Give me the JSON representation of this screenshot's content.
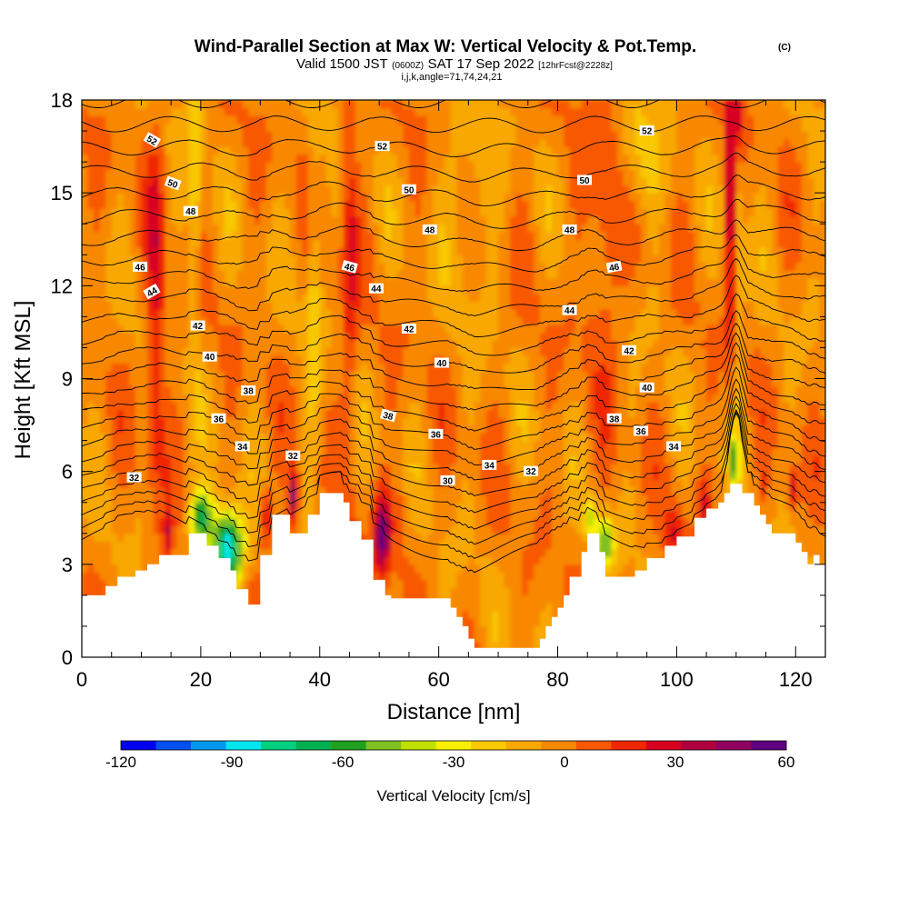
{
  "chart_data": {
    "type": "heatmap",
    "title": "Wind-Parallel Section at Max W: Vertical Velocity & Pot.Temp.",
    "copyright": "(C)",
    "subtitle_valid": "Valid 1500 JST",
    "subtitle_utc": "(0600Z)",
    "subtitle_date": "SAT 17 Sep 2022",
    "subtitle_fcst": "[12hrFcst@2228z]",
    "subtitle_grid": "i,j,k,angle=71,74,24,21",
    "xlabel": "Distance [nm]",
    "ylabel": "Height [Kft MSL]",
    "xlim": [
      0,
      125
    ],
    "ylim": [
      0,
      18
    ],
    "x_ticks": [
      0,
      20,
      40,
      60,
      80,
      100,
      120
    ],
    "x_tick_labels": [
      "0",
      "20",
      "40",
      "60",
      "80",
      "100",
      "120"
    ],
    "y_ticks": [
      0,
      3,
      6,
      9,
      12,
      15,
      18
    ],
    "y_tick_labels": [
      "0",
      "3",
      "6",
      "9",
      "12",
      "15",
      "18"
    ],
    "colorbar": {
      "label": "Vertical Velocity [cm/s]",
      "range": [
        -120,
        60
      ],
      "tick_values": [
        -120,
        -90,
        -60,
        -30,
        0,
        30,
        60
      ],
      "tick_labels": [
        "-120",
        "-90",
        "-60",
        "-30",
        "0",
        "30",
        "60"
      ],
      "colors": [
        "#0000f0",
        "#0050f0",
        "#0096f0",
        "#00e6f0",
        "#00d080",
        "#00b050",
        "#20a020",
        "#80c020",
        "#c0e000",
        "#f8f000",
        "#f8c800",
        "#f8a800",
        "#f88800",
        "#f85800",
        "#f02800",
        "#d80020",
        "#b00040",
        "#900060",
        "#600080"
      ]
    },
    "terrain": {
      "x": [
        0,
        4,
        4,
        6,
        6,
        9,
        9,
        11,
        11,
        13,
        13,
        18,
        18,
        21,
        21,
        23,
        23,
        25,
        25,
        26,
        26,
        28,
        28,
        30,
        30,
        32,
        32,
        35,
        35,
        38,
        38,
        40,
        40,
        44,
        44,
        45,
        45,
        47,
        47,
        49,
        49,
        51,
        51,
        52,
        52,
        55,
        55,
        58,
        58,
        62,
        62,
        63,
        63,
        64,
        64,
        65,
        65,
        66,
        66,
        74,
        74,
        77,
        77,
        78,
        78,
        79,
        79,
        80,
        80,
        81,
        81,
        82,
        82,
        84,
        84,
        85,
        85,
        87,
        87,
        88,
        88,
        91,
        91,
        93,
        93,
        95,
        95,
        98,
        98,
        100,
        100,
        103,
        103,
        105,
        105,
        107,
        107,
        108,
        108,
        109,
        109,
        111,
        111,
        113,
        113,
        114,
        114,
        115,
        115,
        116,
        116,
        120,
        120,
        121,
        121,
        122,
        122,
        123,
        123,
        124,
        124,
        125
      ],
      "y": [
        2.0,
        2.0,
        2.3,
        2.3,
        2.6,
        2.6,
        2.8,
        2.8,
        3.0,
        3.0,
        3.3,
        3.3,
        4.0,
        4.0,
        3.6,
        3.6,
        3.2,
        3.2,
        2.8,
        2.8,
        2.2,
        2.2,
        1.7,
        1.7,
        3.3,
        3.3,
        4.6,
        4.6,
        4.0,
        4.0,
        4.6,
        4.6,
        5.3,
        5.3,
        5.0,
        5.0,
        4.4,
        4.4,
        3.8,
        3.8,
        2.5,
        2.5,
        2.0,
        2.0,
        1.9,
        1.9,
        1.9,
        1.9,
        1.9,
        1.9,
        1.6,
        1.6,
        1.3,
        1.3,
        1.0,
        1.0,
        0.6,
        0.6,
        0.3,
        0.3,
        0.3,
        0.3,
        0.6,
        0.6,
        1.0,
        1.0,
        1.3,
        1.3,
        1.6,
        1.6,
        2.0,
        2.0,
        2.6,
        2.6,
        3.4,
        3.4,
        4.0,
        4.0,
        3.4,
        3.4,
        2.6,
        2.6,
        2.6,
        2.6,
        2.8,
        2.8,
        3.2,
        3.2,
        3.6,
        3.6,
        3.9,
        3.9,
        4.5,
        4.5,
        4.8,
        4.8,
        5.0,
        5.0,
        5.3,
        5.3,
        5.6,
        5.6,
        5.3,
        5.3,
        4.9,
        4.9,
        4.6,
        4.6,
        4.3,
        4.3,
        4.0,
        4.0,
        3.7,
        3.7,
        3.4,
        3.4,
        3.0,
        3.0,
        3.3,
        3.3,
        3.0,
        3.0
      ]
    },
    "theta_labels": [
      {
        "value": "52",
        "x": 11.8,
        "y": 16.7,
        "rot": 30
      },
      {
        "value": "50",
        "x": 15.3,
        "y": 15.3,
        "rot": 20
      },
      {
        "value": "48",
        "x": 18.3,
        "y": 14.4,
        "rot": 0
      },
      {
        "value": "46",
        "x": 9.8,
        "y": 12.6,
        "rot": 0
      },
      {
        "value": "44",
        "x": 11.8,
        "y": 11.8,
        "rot": -30
      },
      {
        "value": "42",
        "x": 19.5,
        "y": 10.7,
        "rot": 0
      },
      {
        "value": "40",
        "x": 21.5,
        "y": 9.7,
        "rot": 0
      },
      {
        "value": "38",
        "x": 28.0,
        "y": 8.6,
        "rot": 0
      },
      {
        "value": "36",
        "x": 23.0,
        "y": 7.7,
        "rot": 0
      },
      {
        "value": "34",
        "x": 27.0,
        "y": 6.8,
        "rot": 0
      },
      {
        "value": "32",
        "x": 35.5,
        "y": 6.5,
        "rot": 0
      },
      {
        "value": "32",
        "x": 8.8,
        "y": 5.8,
        "rot": 0
      },
      {
        "value": "52",
        "x": 50.5,
        "y": 16.5,
        "rot": 0
      },
      {
        "value": "50",
        "x": 55.0,
        "y": 15.1,
        "rot": 0
      },
      {
        "value": "48",
        "x": 58.5,
        "y": 13.8,
        "rot": 0
      },
      {
        "value": "46",
        "x": 45.0,
        "y": 12.6,
        "rot": 15
      },
      {
        "value": "44",
        "x": 49.5,
        "y": 11.9,
        "rot": 0
      },
      {
        "value": "42",
        "x": 55.0,
        "y": 10.6,
        "rot": 0
      },
      {
        "value": "40",
        "x": 60.5,
        "y": 9.5,
        "rot": 0
      },
      {
        "value": "38",
        "x": 51.5,
        "y": 7.8,
        "rot": 15
      },
      {
        "value": "36",
        "x": 59.5,
        "y": 7.2,
        "rot": 0
      },
      {
        "value": "34",
        "x": 68.5,
        "y": 6.2,
        "rot": 0
      },
      {
        "value": "32",
        "x": 75.5,
        "y": 6.0,
        "rot": 0
      },
      {
        "value": "30",
        "x": 61.5,
        "y": 5.7,
        "rot": 0
      },
      {
        "value": "52",
        "x": 95.0,
        "y": 17.0,
        "rot": 0
      },
      {
        "value": "50",
        "x": 84.5,
        "y": 15.4,
        "rot": 0
      },
      {
        "value": "48",
        "x": 82.0,
        "y": 13.8,
        "rot": 0
      },
      {
        "value": "46",
        "x": 89.5,
        "y": 12.6,
        "rot": -10
      },
      {
        "value": "44",
        "x": 82.0,
        "y": 11.2,
        "rot": 0
      },
      {
        "value": "42",
        "x": 92.0,
        "y": 9.9,
        "rot": 0
      },
      {
        "value": "40",
        "x": 95.0,
        "y": 8.7,
        "rot": 0
      },
      {
        "value": "38",
        "x": 89.5,
        "y": 7.7,
        "rot": 0
      },
      {
        "value": "36",
        "x": 94.0,
        "y": 7.3,
        "rot": 0
      },
      {
        "value": "34",
        "x": 99.5,
        "y": 6.8,
        "rot": 0
      }
    ],
    "theta_contour_levels": [
      30,
      31,
      32,
      33,
      34,
      35,
      36,
      37,
      38,
      39,
      40,
      41,
      42,
      43,
      44,
      45,
      46,
      47,
      48,
      49,
      50,
      51,
      52,
      53,
      54
    ]
  }
}
